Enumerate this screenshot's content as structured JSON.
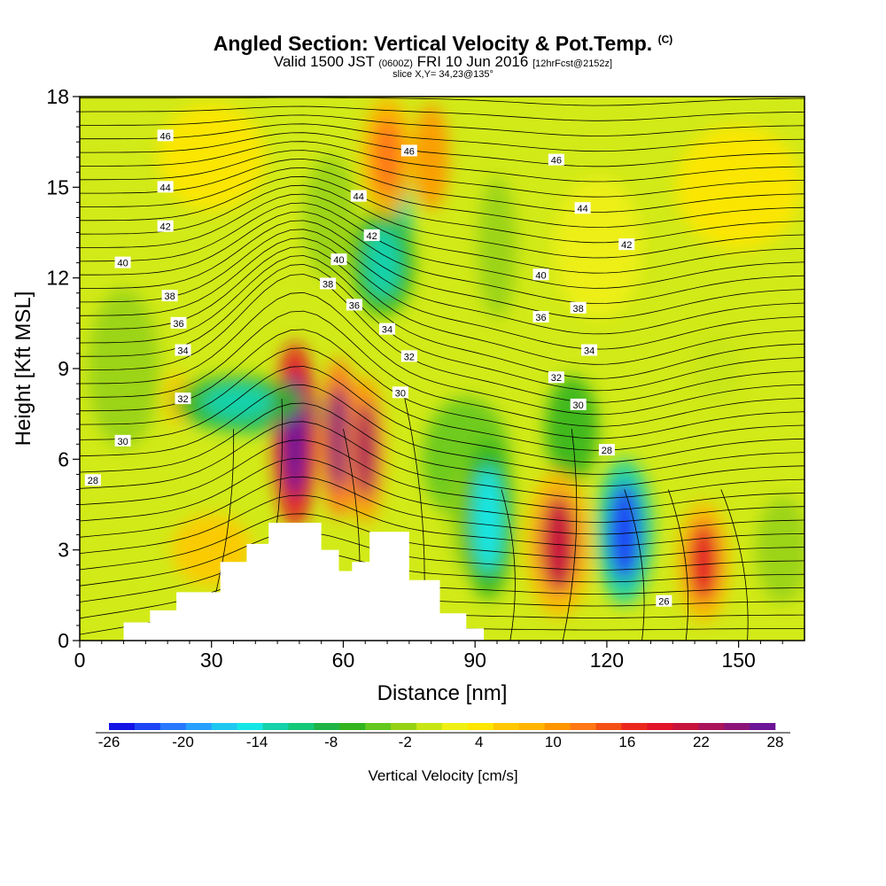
{
  "titles": {
    "main": "Angled Section: Vertical Velocity & Pot.Temp.",
    "corner": "(C)",
    "valid_prefix": "Valid 1500 JST",
    "valid_zulu": "(0600Z)",
    "valid_date": "FRI 10 Jun 2016",
    "forecast": "[12hrFcst@2152z]",
    "slice": "slice X,Y= 34,23@135°"
  },
  "chart_data": {
    "type": "heatmap",
    "title": "Angled Section: Vertical Velocity & Pot.Temp.",
    "xlabel": "Distance [nm]",
    "ylabel": "Height [Kft MSL]",
    "xlim": [
      0,
      165
    ],
    "ylim": [
      0,
      18
    ],
    "xticks": [
      0,
      30,
      60,
      90,
      120,
      150
    ],
    "yticks": [
      0,
      3,
      6,
      9,
      12,
      15,
      18
    ],
    "colorbar": {
      "label": "Vertical Velocity [cm/s]",
      "tick_labels": [
        "-26",
        "-20",
        "-14",
        "-8",
        "-2",
        "4",
        "10",
        "16",
        "22",
        "28"
      ],
      "colors": [
        "#1414e6",
        "#1e46f5",
        "#2878ff",
        "#28a0ff",
        "#1ec8f0",
        "#14e6e6",
        "#14d2aa",
        "#14c878",
        "#1eb446",
        "#32b41e",
        "#64c81e",
        "#96d214",
        "#c8e614",
        "#f0f014",
        "#ffe600",
        "#ffc800",
        "#ffb400",
        "#ff9600",
        "#ff7814",
        "#f55014",
        "#eb281e",
        "#e11428",
        "#c8143c",
        "#aa145a",
        "#8c1478",
        "#6e1496"
      ]
    },
    "contour_labels": [
      {
        "text": "46",
        "x": 19.5,
        "y": 16.7
      },
      {
        "text": "44",
        "x": 19.5,
        "y": 15.0
      },
      {
        "text": "42",
        "x": 19.5,
        "y": 13.7
      },
      {
        "text": "40",
        "x": 9.8,
        "y": 12.5
      },
      {
        "text": "38",
        "x": 20.5,
        "y": 11.4
      },
      {
        "text": "36",
        "x": 22.5,
        "y": 10.5
      },
      {
        "text": "34",
        "x": 23.5,
        "y": 9.6
      },
      {
        "text": "32",
        "x": 23.5,
        "y": 8.0
      },
      {
        "text": "30",
        "x": 9.8,
        "y": 6.6
      },
      {
        "text": "28",
        "x": 3.0,
        "y": 5.3
      },
      {
        "text": "46",
        "x": 75.0,
        "y": 16.2
      },
      {
        "text": "44",
        "x": 63.5,
        "y": 14.7
      },
      {
        "text": "42",
        "x": 66.5,
        "y": 13.4
      },
      {
        "text": "40",
        "x": 59.0,
        "y": 12.6
      },
      {
        "text": "38",
        "x": 56.5,
        "y": 11.8
      },
      {
        "text": "36",
        "x": 62.5,
        "y": 11.1
      },
      {
        "text": "34",
        "x": 70.0,
        "y": 10.3
      },
      {
        "text": "32",
        "x": 75.0,
        "y": 9.4
      },
      {
        "text": "30",
        "x": 73.0,
        "y": 8.2
      },
      {
        "text": "46",
        "x": 108.5,
        "y": 15.9
      },
      {
        "text": "44",
        "x": 114.5,
        "y": 14.3
      },
      {
        "text": "42",
        "x": 124.5,
        "y": 13.1
      },
      {
        "text": "40",
        "x": 105.0,
        "y": 12.1
      },
      {
        "text": "38",
        "x": 113.5,
        "y": 11.0
      },
      {
        "text": "36",
        "x": 105.0,
        "y": 10.7
      },
      {
        "text": "34",
        "x": 116.0,
        "y": 9.6
      },
      {
        "text": "32",
        "x": 108.5,
        "y": 8.7
      },
      {
        "text": "30",
        "x": 113.5,
        "y": 7.8
      },
      {
        "text": "28",
        "x": 120.0,
        "y": 6.3
      },
      {
        "text": "26",
        "x": 133.0,
        "y": 1.3
      }
    ],
    "velocity_cores_cm_per_s": [
      {
        "x": 49,
        "y": 6.8,
        "value": 28
      },
      {
        "x": 59,
        "y": 6.7,
        "value": 22
      },
      {
        "x": 65,
        "y": 6.3,
        "value": 20
      },
      {
        "x": 93,
        "y": 4.0,
        "value": -16
      },
      {
        "x": 109,
        "y": 3.2,
        "value": 18
      },
      {
        "x": 124,
        "y": 3.6,
        "value": -24
      },
      {
        "x": 142,
        "y": 2.6,
        "value": 16
      },
      {
        "x": 36,
        "y": 7.9,
        "value": -14
      },
      {
        "x": 69,
        "y": 12.5,
        "value": -14
      },
      {
        "x": 70,
        "y": 16,
        "value": 10
      }
    ],
    "terrain_kft": [
      {
        "x": 0,
        "h": 0
      },
      {
        "x": 10,
        "h": 0.6
      },
      {
        "x": 16,
        "h": 1
      },
      {
        "x": 22,
        "h": 1.6
      },
      {
        "x": 32,
        "h": 2.6
      },
      {
        "x": 38,
        "h": 3.2
      },
      {
        "x": 43,
        "h": 3.9
      },
      {
        "x": 51,
        "h": 3.9
      },
      {
        "x": 55,
        "h": 3.0
      },
      {
        "x": 59,
        "h": 2.3
      },
      {
        "x": 62,
        "h": 2.6
      },
      {
        "x": 66,
        "h": 3.6
      },
      {
        "x": 72,
        "h": 3.6
      },
      {
        "x": 75,
        "h": 2.0
      },
      {
        "x": 82,
        "h": 0.9
      },
      {
        "x": 88,
        "h": 0.4
      },
      {
        "x": 92,
        "h": 0
      }
    ]
  }
}
